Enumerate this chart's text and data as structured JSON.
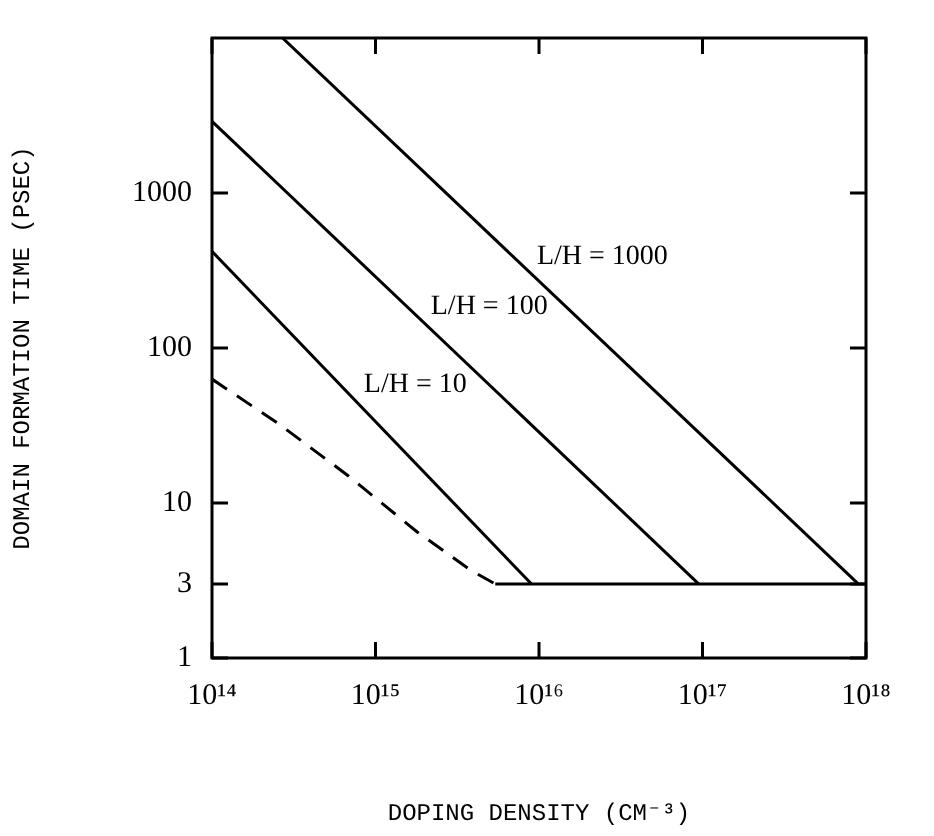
{
  "chart_data": {
    "type": "line",
    "xlabel": "DOPING DENSITY (CM⁻³)",
    "ylabel": "DOMAIN FORMATION TIME (PSEC)",
    "log": "xy",
    "grid": false,
    "legend": false,
    "marker": "none",
    "line_style": "solid",
    "xlim": [
      100000000000000.0,
      1e+18
    ],
    "ylim": [
      1,
      10000
    ],
    "xticks": [
      {
        "value": 100000000000000.0,
        "label": "10¹⁴"
      },
      {
        "value": 1000000000000000.0,
        "label": "10¹⁵"
      },
      {
        "value": 1e+16,
        "label": "10¹⁶"
      },
      {
        "value": 1e+17,
        "label": "10¹⁷"
      },
      {
        "value": 1e+18,
        "label": "10¹⁸"
      }
    ],
    "yticks": [
      1,
      3,
      10,
      100,
      1000
    ],
    "series": [
      {
        "name": "L/H = 1000",
        "color": "#000000",
        "x": [
          270000000000000.0,
          9e+17
        ],
        "values": [
          10000,
          3
        ]
      },
      {
        "name": "L/H = 100",
        "color": "#000000",
        "x": [
          100000000000000.0,
          9.5e+16
        ],
        "values": [
          2900,
          3
        ]
      },
      {
        "name": "L/H = 10",
        "color": "#000000",
        "x": [
          100000000000000.0,
          9000000000000000.0
        ],
        "values": [
          420,
          3
        ]
      },
      {
        "color": "#000000",
        "line_style": "dashed",
        "x": [
          100000000000000.0,
          260000000000000.0,
          680000000000000.0,
          1800000000000000.0,
          3800000000000000.0,
          5400000000000000.0
        ],
        "values": [
          63,
          32,
          15,
          6.5,
          3.7,
          3
        ]
      },
      {
        "color": "#000000",
        "x": [
          5400000000000000.0,
          1e+18
        ],
        "values": [
          3,
          3
        ]
      }
    ]
  }
}
